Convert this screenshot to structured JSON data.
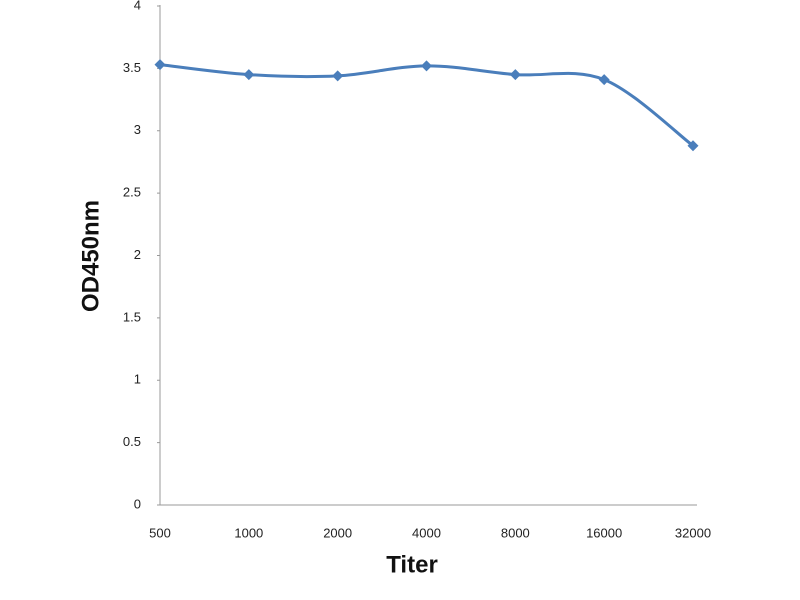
{
  "chart_data": {
    "type": "line",
    "categories": [
      "500",
      "1000",
      "2000",
      "4000",
      "8000",
      "16000",
      "32000"
    ],
    "series": [
      {
        "name": "OD450nm",
        "color": "#4a7ebb",
        "values": [
          3.53,
          3.45,
          3.44,
          3.52,
          3.45,
          3.41,
          2.88
        ]
      }
    ],
    "ylim": [
      0,
      4
    ],
    "yticks": [
      0,
      0.5,
      1,
      1.5,
      2,
      2.5,
      3,
      3.5,
      4
    ],
    "x_label": "Titer",
    "y_label": "OD450nm"
  }
}
